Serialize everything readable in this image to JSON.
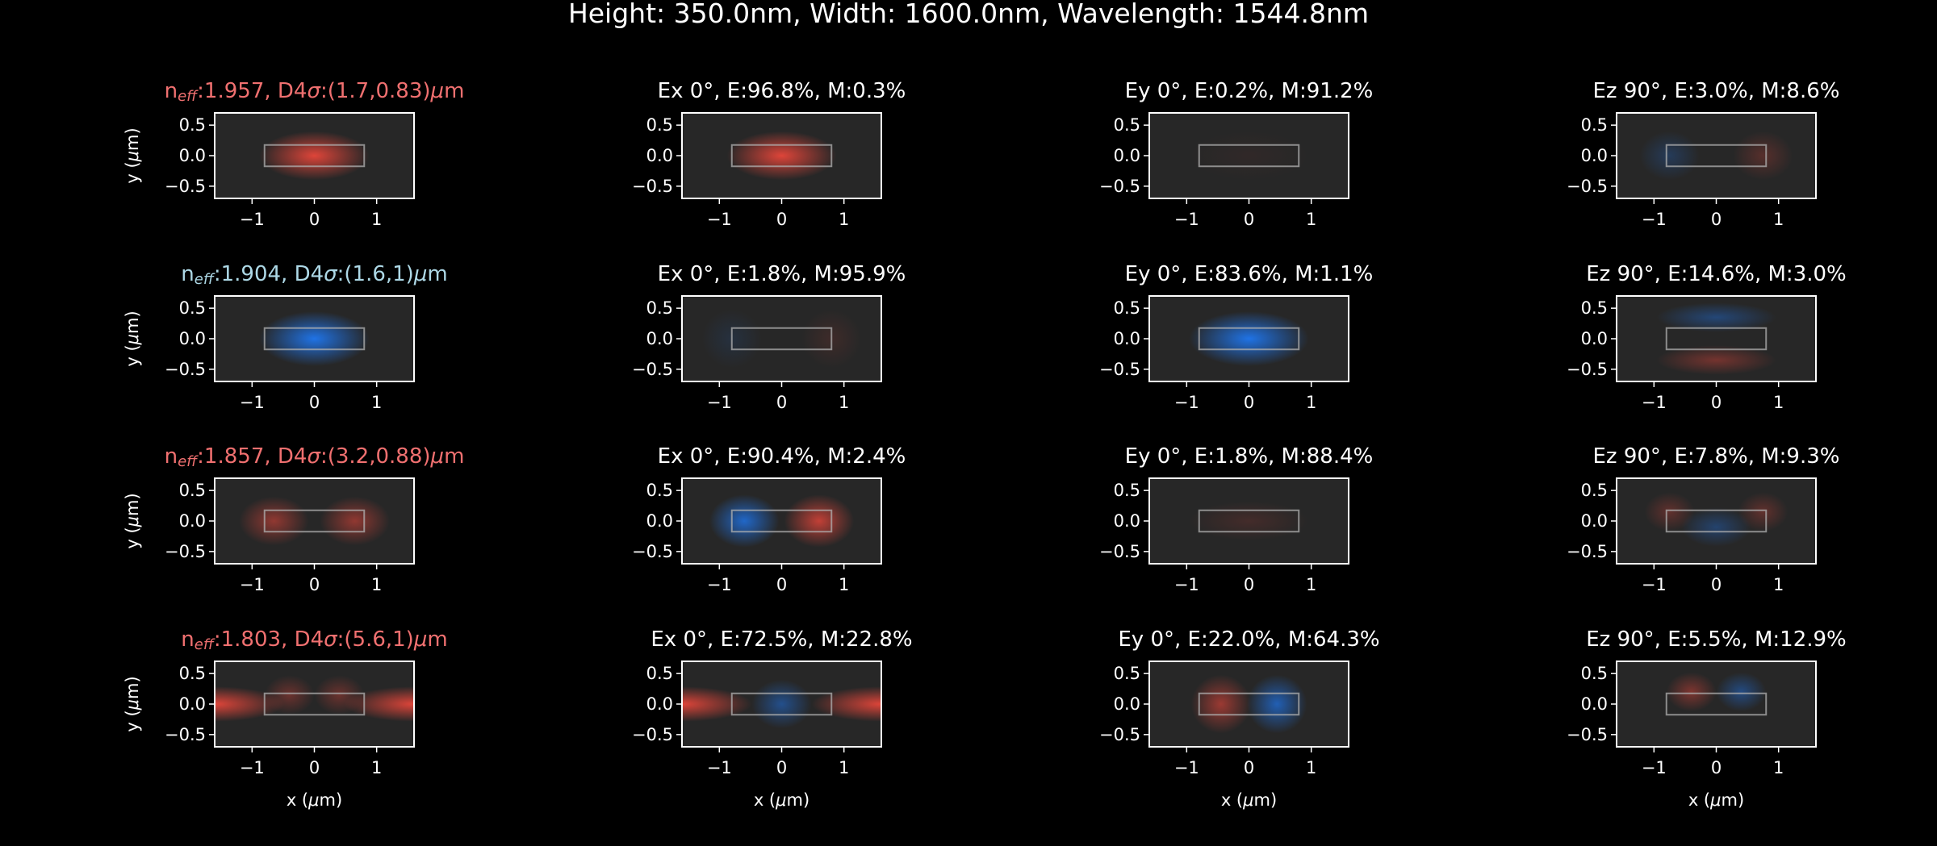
{
  "figure": {
    "title": "Height: 350.0nm, Width: 1600.0nm, Wavelength: 1544.8nm",
    "background": "#000000",
    "axes_face": "#272727",
    "colors": {
      "positive": "#e8463a",
      "negative": "#1f77f0",
      "odd_label": "#f07070",
      "even_label": "#add8e6",
      "core_outline": "#b0b0b0"
    }
  },
  "chart_data": {
    "type": "heatmap",
    "xlabel": "x (μm)",
    "ylabel": "y (μm)",
    "xlim": [
      -1.6,
      1.6
    ],
    "ylim": [
      -0.7,
      0.7
    ],
    "xticks": [
      "−1",
      "0",
      "1"
    ],
    "yticks": [
      "0.5",
      "0.0",
      "−0.5"
    ],
    "xtick_values": [
      -1,
      0,
      1
    ],
    "ytick_values": [
      0.5,
      0.0,
      -0.5
    ],
    "core": {
      "x": [
        -0.8,
        0.8
      ],
      "y": [
        -0.175,
        0.175
      ]
    },
    "rows": [
      {
        "mode_label": {
          "neff": "1.957",
          "d4sigma": "(1.7,0.83)",
          "unit": "μm",
          "color": "#f07070"
        },
        "components": [
          {
            "name": "mode",
            "blobs": [
              {
                "x": 0,
                "y": 0,
                "sx": 0.55,
                "sy": 0.25,
                "a": 0.95,
                "sign": 1
              }
            ]
          },
          {
            "name": "Ex",
            "angle": "0°",
            "E": "96.8%",
            "M": "0.3%",
            "blobs": [
              {
                "x": 0,
                "y": 0,
                "sx": 0.55,
                "sy": 0.25,
                "a": 0.95,
                "sign": 1
              }
            ]
          },
          {
            "name": "Ey",
            "angle": "0°",
            "E": "0.2%",
            "M": "91.2%",
            "blobs": [
              {
                "x": 0,
                "y": 0,
                "sx": 0.6,
                "sy": 0.25,
                "a": 0.05,
                "sign": 1
              }
            ]
          },
          {
            "name": "Ez",
            "angle": "90°",
            "E": "3.0%",
            "M": "8.6%",
            "blobs": [
              {
                "x": -0.75,
                "y": 0,
                "sx": 0.3,
                "sy": 0.25,
                "a": 0.25,
                "sign": -1
              },
              {
                "x": 0.75,
                "y": 0,
                "sx": 0.3,
                "sy": 0.25,
                "a": 0.25,
                "sign": 1
              }
            ]
          }
        ]
      },
      {
        "mode_label": {
          "neff": "1.904",
          "d4sigma": "(1.6,1)",
          "unit": "μm",
          "color": "#add8e6"
        },
        "components": [
          {
            "name": "mode",
            "blobs": [
              {
                "x": 0,
                "y": 0,
                "sx": 0.55,
                "sy": 0.28,
                "a": 0.95,
                "sign": -1
              }
            ]
          },
          {
            "name": "Ex",
            "angle": "0°",
            "E": "1.8%",
            "M": "95.9%",
            "blobs": [
              {
                "x": -0.8,
                "y": 0,
                "sx": 0.3,
                "sy": 0.3,
                "a": 0.12,
                "sign": -1
              },
              {
                "x": 0.8,
                "y": 0,
                "sx": 0.3,
                "sy": 0.3,
                "a": 0.12,
                "sign": 1
              }
            ]
          },
          {
            "name": "Ey",
            "angle": "0°",
            "E": "83.6%",
            "M": "1.1%",
            "blobs": [
              {
                "x": 0,
                "y": 0,
                "sx": 0.6,
                "sy": 0.28,
                "a": 0.95,
                "sign": -1
              }
            ]
          },
          {
            "name": "Ez",
            "angle": "90°",
            "E": "14.6%",
            "M": "3.0%",
            "blobs": [
              {
                "x": 0,
                "y": 0.35,
                "sx": 0.6,
                "sy": 0.15,
                "a": 0.4,
                "sign": -1
              },
              {
                "x": 0,
                "y": -0.35,
                "sx": 0.6,
                "sy": 0.15,
                "a": 0.4,
                "sign": 1
              }
            ]
          }
        ]
      },
      {
        "mode_label": {
          "neff": "1.857",
          "d4sigma": "(3.2,0.88)",
          "unit": "μm",
          "color": "#f07070"
        },
        "components": [
          {
            "name": "mode",
            "blobs": [
              {
                "x": -0.65,
                "y": 0,
                "sx": 0.35,
                "sy": 0.25,
                "a": 0.55,
                "sign": 1
              },
              {
                "x": 0.65,
                "y": 0,
                "sx": 0.35,
                "sy": 0.25,
                "a": 0.55,
                "sign": 1
              }
            ]
          },
          {
            "name": "Ex",
            "angle": "0°",
            "E": "90.4%",
            "M": "2.4%",
            "blobs": [
              {
                "x": -0.6,
                "y": 0,
                "sx": 0.35,
                "sy": 0.27,
                "a": 0.8,
                "sign": -1
              },
              {
                "x": 0.6,
                "y": 0,
                "sx": 0.35,
                "sy": 0.27,
                "a": 0.8,
                "sign": 1
              }
            ]
          },
          {
            "name": "Ey",
            "angle": "0°",
            "E": "1.8%",
            "M": "88.4%",
            "blobs": [
              {
                "x": 0,
                "y": 0,
                "sx": 0.6,
                "sy": 0.2,
                "a": 0.15,
                "sign": 1
              }
            ]
          },
          {
            "name": "Ez",
            "angle": "90°",
            "E": "7.8%",
            "M": "9.3%",
            "blobs": [
              {
                "x": -0.75,
                "y": 0.15,
                "sx": 0.25,
                "sy": 0.2,
                "a": 0.3,
                "sign": 1
              },
              {
                "x": 0.75,
                "y": 0.15,
                "sx": 0.25,
                "sy": 0.2,
                "a": 0.3,
                "sign": 1
              },
              {
                "x": 0,
                "y": -0.1,
                "sx": 0.35,
                "sy": 0.2,
                "a": 0.35,
                "sign": -1
              }
            ]
          }
        ]
      },
      {
        "mode_label": {
          "neff": "1.803",
          "d4sigma": "(5.6,1)",
          "unit": "μm",
          "color": "#f07070"
        },
        "components": [
          {
            "name": "mode",
            "blobs": [
              {
                "x": -1.6,
                "y": 0,
                "sx": 0.7,
                "sy": 0.18,
                "a": 0.95,
                "sign": 1
              },
              {
                "x": 1.6,
                "y": 0,
                "sx": 0.7,
                "sy": 0.18,
                "a": 0.95,
                "sign": 1
              },
              {
                "x": -0.4,
                "y": 0.15,
                "sx": 0.25,
                "sy": 0.2,
                "a": 0.35,
                "sign": 1
              },
              {
                "x": 0.4,
                "y": 0.15,
                "sx": 0.25,
                "sy": 0.2,
                "a": 0.35,
                "sign": 1
              }
            ]
          },
          {
            "name": "Ex",
            "angle": "0°",
            "E": "72.5%",
            "M": "22.8%",
            "blobs": [
              {
                "x": -1.6,
                "y": 0,
                "sx": 0.7,
                "sy": 0.18,
                "a": 0.95,
                "sign": 1
              },
              {
                "x": 1.6,
                "y": 0,
                "sx": 0.7,
                "sy": 0.18,
                "a": 0.95,
                "sign": 1
              },
              {
                "x": 0,
                "y": 0,
                "sx": 0.3,
                "sy": 0.25,
                "a": 0.5,
                "sign": -1
              }
            ]
          },
          {
            "name": "Ey",
            "angle": "0°",
            "E": "22.0%",
            "M": "64.3%",
            "blobs": [
              {
                "x": -0.45,
                "y": 0,
                "sx": 0.3,
                "sy": 0.3,
                "a": 0.6,
                "sign": 1
              },
              {
                "x": 0.45,
                "y": 0,
                "sx": 0.3,
                "sy": 0.3,
                "a": 0.7,
                "sign": -1
              }
            ]
          },
          {
            "name": "Ez",
            "angle": "90°",
            "E": "5.5%",
            "M": "12.9%",
            "blobs": [
              {
                "x": -0.4,
                "y": 0.2,
                "sx": 0.25,
                "sy": 0.2,
                "a": 0.45,
                "sign": 1
              },
              {
                "x": 0.4,
                "y": 0.2,
                "sx": 0.25,
                "sy": 0.2,
                "a": 0.45,
                "sign": -1
              }
            ]
          }
        ]
      }
    ]
  }
}
